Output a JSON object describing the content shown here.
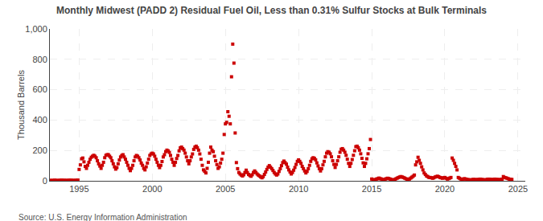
{
  "chart_data": {
    "type": "scatter",
    "title": "Monthly Midwest (PADD 2) Residual Fuel Oil, Less than 0.31% Sulfur Stocks at Bulk Terminals",
    "ylabel": "Thousand Barrels",
    "annotations": [
      "Source: U.S. Energy Information Administration"
    ],
    "color": "#cc0000",
    "marker": "square",
    "grid": true,
    "xlim": [
      1993.0,
      2025.5
    ],
    "ylim": [
      0,
      1000
    ],
    "xticks": [
      1995,
      2000,
      2005,
      2010,
      2015,
      2020,
      2025
    ],
    "yticks": [
      0,
      200,
      400,
      600,
      800,
      {
        "value": 1000,
        "label": "1,000"
      }
    ],
    "x": [
      1993.0,
      1993.083,
      1993.167,
      1993.25,
      1993.333,
      1993.417,
      1993.5,
      1993.583,
      1993.667,
      1993.75,
      1993.833,
      1993.917,
      1994.0,
      1994.083,
      1994.167,
      1994.25,
      1994.333,
      1994.417,
      1994.5,
      1994.583,
      1994.667,
      1994.75,
      1994.833,
      1994.917,
      1995.0,
      1995.083,
      1995.167,
      1995.25,
      1995.333,
      1995.417,
      1995.5,
      1995.583,
      1995.667,
      1995.75,
      1995.833,
      1995.917,
      1996.0,
      1996.083,
      1996.167,
      1996.25,
      1996.333,
      1996.417,
      1996.5,
      1996.583,
      1996.667,
      1996.75,
      1996.833,
      1996.917,
      1997.0,
      1997.083,
      1997.167,
      1997.25,
      1997.333,
      1997.417,
      1997.5,
      1997.583,
      1997.667,
      1997.75,
      1997.833,
      1997.917,
      1998.0,
      1998.083,
      1998.167,
      1998.25,
      1998.333,
      1998.417,
      1998.5,
      1998.583,
      1998.667,
      1998.75,
      1998.833,
      1998.917,
      1999.0,
      1999.083,
      1999.167,
      1999.25,
      1999.333,
      1999.417,
      1999.5,
      1999.583,
      1999.667,
      1999.75,
      1999.833,
      1999.917,
      2000.0,
      2000.083,
      2000.167,
      2000.25,
      2000.333,
      2000.417,
      2000.5,
      2000.583,
      2000.667,
      2000.75,
      2000.833,
      2000.917,
      2001.0,
      2001.083,
      2001.167,
      2001.25,
      2001.333,
      2001.417,
      2001.5,
      2001.583,
      2001.667,
      2001.75,
      2001.833,
      2001.917,
      2002.0,
      2002.083,
      2002.167,
      2002.25,
      2002.333,
      2002.417,
      2002.5,
      2002.583,
      2002.667,
      2002.75,
      2002.833,
      2002.917,
      2003.0,
      2003.083,
      2003.167,
      2003.25,
      2003.333,
      2003.417,
      2003.5,
      2003.583,
      2003.667,
      2003.75,
      2003.833,
      2003.917,
      2004.0,
      2004.083,
      2004.167,
      2004.25,
      2004.333,
      2004.417,
      2004.5,
      2004.583,
      2004.667,
      2004.75,
      2004.833,
      2004.917,
      2005.0,
      2005.083,
      2005.167,
      2005.25,
      2005.333,
      2005.417,
      2005.5,
      2005.583,
      2005.667,
      2005.75,
      2005.833,
      2005.917,
      2006.0,
      2006.083,
      2006.167,
      2006.25,
      2006.333,
      2006.417,
      2006.5,
      2006.583,
      2006.667,
      2006.75,
      2006.833,
      2006.917,
      2007.0,
      2007.083,
      2007.167,
      2007.25,
      2007.333,
      2007.417,
      2007.5,
      2007.583,
      2007.667,
      2007.75,
      2007.833,
      2007.917,
      2008.0,
      2008.083,
      2008.167,
      2008.25,
      2008.333,
      2008.417,
      2008.5,
      2008.583,
      2008.667,
      2008.75,
      2008.833,
      2008.917,
      2009.0,
      2009.083,
      2009.167,
      2009.25,
      2009.333,
      2009.417,
      2009.5,
      2009.583,
      2009.667,
      2009.75,
      2009.833,
      2009.917,
      2010.0,
      2010.083,
      2010.167,
      2010.25,
      2010.333,
      2010.417,
      2010.5,
      2010.583,
      2010.667,
      2010.75,
      2010.833,
      2010.917,
      2011.0,
      2011.083,
      2011.167,
      2011.25,
      2011.333,
      2011.417,
      2011.5,
      2011.583,
      2011.667,
      2011.75,
      2011.833,
      2011.917,
      2012.0,
      2012.083,
      2012.167,
      2012.25,
      2012.333,
      2012.417,
      2012.5,
      2012.583,
      2012.667,
      2012.75,
      2012.833,
      2012.917,
      2013.0,
      2013.083,
      2013.167,
      2013.25,
      2013.333,
      2013.417,
      2013.5,
      2013.583,
      2013.667,
      2013.75,
      2013.833,
      2013.917,
      2014.0,
      2014.083,
      2014.167,
      2014.25,
      2014.333,
      2014.417,
      2014.5,
      2014.583,
      2014.667,
      2014.75,
      2014.833,
      2014.917,
      2015.0,
      2015.083,
      2015.167,
      2015.25,
      2015.333,
      2015.417,
      2015.5,
      2015.583,
      2015.667,
      2015.75,
      2015.833,
      2015.917,
      2016.0,
      2016.083,
      2016.167,
      2016.25,
      2016.333,
      2016.417,
      2016.5,
      2016.583,
      2016.667,
      2016.75,
      2016.833,
      2016.917,
      2017.0,
      2017.083,
      2017.167,
      2017.25,
      2017.333,
      2017.417,
      2017.5,
      2017.583,
      2017.667,
      2017.75,
      2017.833,
      2017.917,
      2018.0,
      2018.083,
      2018.167,
      2018.25,
      2018.333,
      2018.417,
      2018.5,
      2018.583,
      2018.667,
      2018.75,
      2018.833,
      2018.917,
      2019.0,
      2019.083,
      2019.167,
      2019.25,
      2019.333,
      2019.417,
      2019.5,
      2019.583,
      2019.667,
      2019.75,
      2019.833,
      2019.917,
      2020.0,
      2020.083,
      2020.167,
      2020.25,
      2020.333,
      2020.417,
      2020.5,
      2020.583,
      2020.667,
      2020.75,
      2020.833,
      2020.917,
      2021.0,
      2021.083,
      2021.167,
      2021.25,
      2021.333,
      2021.417,
      2021.5,
      2021.583,
      2021.667,
      2021.75,
      2021.833,
      2021.917,
      2022.0,
      2022.083,
      2022.167,
      2022.25,
      2022.333,
      2022.417,
      2022.5,
      2022.583,
      2022.667,
      2022.75,
      2022.833,
      2022.917,
      2023.0,
      2023.083,
      2023.167,
      2023.25,
      2023.333,
      2023.417,
      2023.5,
      2023.583,
      2023.667,
      2023.75,
      2023.833,
      2023.917,
      2024.0,
      2024.083,
      2024.167,
      2024.25,
      2024.333,
      2024.417,
      2024.5,
      2024.583
    ],
    "values": [
      3,
      2,
      2,
      3,
      4,
      3,
      2,
      2,
      3,
      4,
      4,
      3,
      3,
      3,
      2,
      3,
      4,
      4,
      3,
      3,
      2,
      3,
      4,
      5,
      75,
      105,
      145,
      150,
      125,
      95,
      82,
      102,
      122,
      142,
      155,
      162,
      168,
      162,
      152,
      132,
      112,
      97,
      82,
      102,
      122,
      152,
      168,
      172,
      172,
      162,
      152,
      132,
      112,
      92,
      77,
      87,
      112,
      137,
      157,
      167,
      172,
      157,
      142,
      122,
      102,
      82,
      67,
      82,
      102,
      132,
      157,
      167,
      162,
      152,
      137,
      117,
      102,
      82,
      72,
      92,
      117,
      142,
      167,
      177,
      182,
      177,
      162,
      142,
      122,
      102,
      87,
      102,
      127,
      157,
      172,
      192,
      202,
      197,
      187,
      167,
      142,
      122,
      102,
      122,
      147,
      167,
      197,
      217,
      222,
      212,
      202,
      182,
      157,
      132,
      112,
      132,
      157,
      177,
      207,
      222,
      228,
      218,
      202,
      177,
      142,
      102,
      72,
      62,
      52,
      82,
      122,
      182,
      222,
      202,
      192,
      162,
      132,
      107,
      82,
      92,
      117,
      142,
      182,
      305,
      375,
      385,
      455,
      425,
      375,
      685,
      900,
      775,
      315,
      120,
      80,
      55,
      45,
      38,
      32,
      40,
      55,
      70,
      55,
      42,
      35,
      30,
      40,
      55,
      65,
      55,
      45,
      38,
      32,
      25,
      20,
      28,
      42,
      58,
      75,
      90,
      100,
      90,
      80,
      68,
      55,
      45,
      38,
      45,
      62,
      80,
      100,
      120,
      130,
      120,
      110,
      90,
      72,
      58,
      45,
      55,
      70,
      88,
      108,
      128,
      138,
      128,
      115,
      95,
      80,
      65,
      52,
      62,
      80,
      102,
      128,
      145,
      152,
      148,
      138,
      118,
      98,
      80,
      65,
      80,
      105,
      128,
      158,
      182,
      192,
      188,
      178,
      158,
      132,
      108,
      88,
      108,
      132,
      158,
      188,
      208,
      212,
      202,
      188,
      168,
      142,
      115,
      95,
      115,
      140,
      168,
      198,
      225,
      228,
      218,
      202,
      178,
      148,
      118,
      95,
      115,
      145,
      178,
      212,
      272,
      12,
      8,
      5,
      8,
      12,
      14,
      18,
      14,
      12,
      8,
      7,
      11,
      14,
      17,
      15,
      12,
      9,
      7,
      5,
      9,
      14,
      18,
      22,
      25,
      28,
      25,
      22,
      18,
      14,
      11,
      9,
      12,
      18,
      24,
      30,
      38,
      105,
      125,
      155,
      135,
      115,
      92,
      72,
      52,
      42,
      32,
      28,
      22,
      22,
      20,
      17,
      20,
      25,
      28,
      30,
      27,
      22,
      20,
      17,
      20,
      22,
      17,
      12,
      14,
      18,
      22,
      150,
      135,
      115,
      95,
      72,
      22,
      17,
      12,
      9,
      11,
      14,
      12,
      9,
      8,
      7,
      5,
      7,
      9,
      9,
      8,
      7,
      8,
      10,
      11,
      9,
      8,
      7,
      5,
      8,
      10,
      11,
      10,
      9,
      8,
      9,
      11,
      10,
      9,
      8,
      7,
      9,
      11,
      28,
      22,
      20,
      17,
      14,
      11,
      10,
      9
    ]
  }
}
